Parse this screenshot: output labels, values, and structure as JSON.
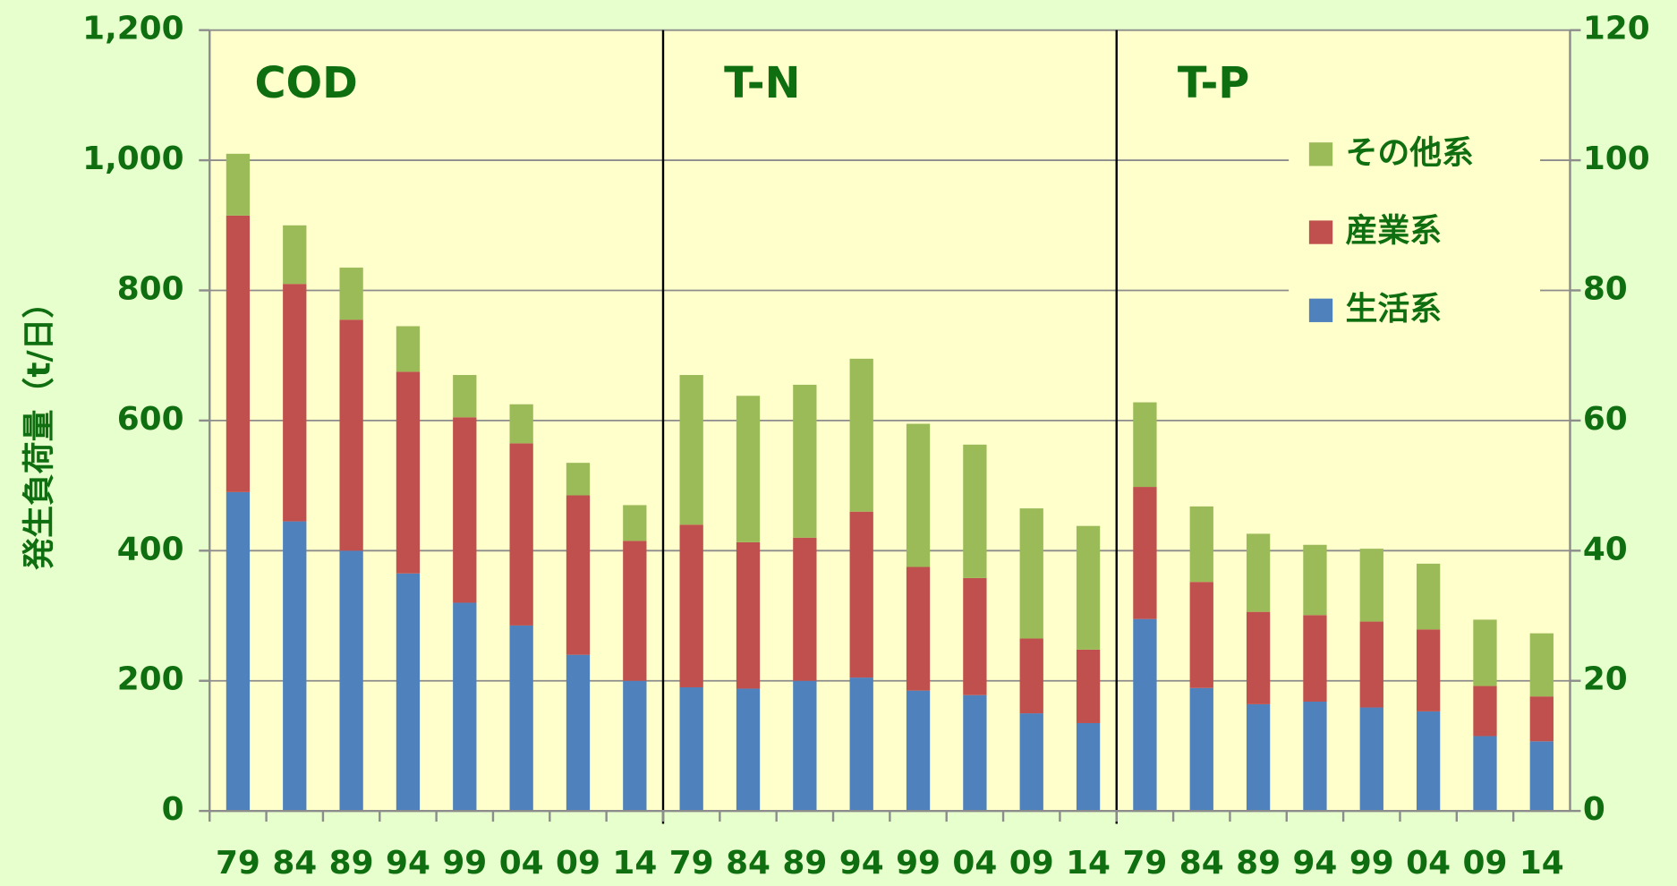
{
  "chart_data": {
    "type": "bar",
    "stacked": true,
    "y_label": "発生負荷量（t/日）",
    "ylim": [
      0,
      1200
    ],
    "yticks": [
      0,
      200,
      400,
      600,
      800,
      {
        "value": 1000,
        "label": "1,000"
      },
      {
        "value": 1200,
        "label": "1,200"
      }
    ],
    "y2lim": [
      0,
      120
    ],
    "y2ticks": [
      0,
      20,
      40,
      60,
      80,
      100,
      120
    ],
    "grid": true,
    "legend": "upper right",
    "series": [
      {
        "name": "生活系",
        "color": "#4f81bd"
      },
      {
        "name": "産業系",
        "color": "#c0504d"
      },
      {
        "name": "その他系",
        "color": "#9bbb59"
      }
    ],
    "panels": [
      {
        "title": "COD",
        "axis": "y",
        "categories": [
          "79",
          "84",
          "89",
          "94",
          "99",
          "04",
          "09",
          "14"
        ],
        "values": [
          [
            490,
            445,
            400,
            365,
            320,
            285,
            240,
            200
          ],
          [
            425,
            365,
            355,
            310,
            285,
            280,
            245,
            215
          ],
          [
            95,
            90,
            80,
            70,
            65,
            60,
            50,
            55
          ]
        ]
      },
      {
        "title": "T-N",
        "axis": "y",
        "categories": [
          "79",
          "84",
          "89",
          "94",
          "99",
          "04",
          "09",
          "14"
        ],
        "values": [
          [
            190,
            188,
            200,
            205,
            185,
            178,
            150,
            135
          ],
          [
            250,
            225,
            220,
            255,
            190,
            180,
            115,
            113
          ],
          [
            230,
            225,
            235,
            235,
            220,
            205,
            200,
            190
          ]
        ]
      },
      {
        "title": "T-P",
        "axis": "y2",
        "categories": [
          "79",
          "84",
          "89",
          "94",
          "99",
          "04",
          "09",
          "14"
        ],
        "values": [
          [
            29.5,
            18.9,
            16.4,
            16.8,
            15.9,
            15.3,
            11.5,
            10.7
          ],
          [
            20.3,
            16.3,
            14.2,
            13.3,
            13.2,
            12.6,
            7.7,
            6.9
          ],
          [
            13,
            11.6,
            12,
            10.8,
            11.2,
            10.1,
            10.2,
            9.7
          ]
        ]
      }
    ]
  }
}
